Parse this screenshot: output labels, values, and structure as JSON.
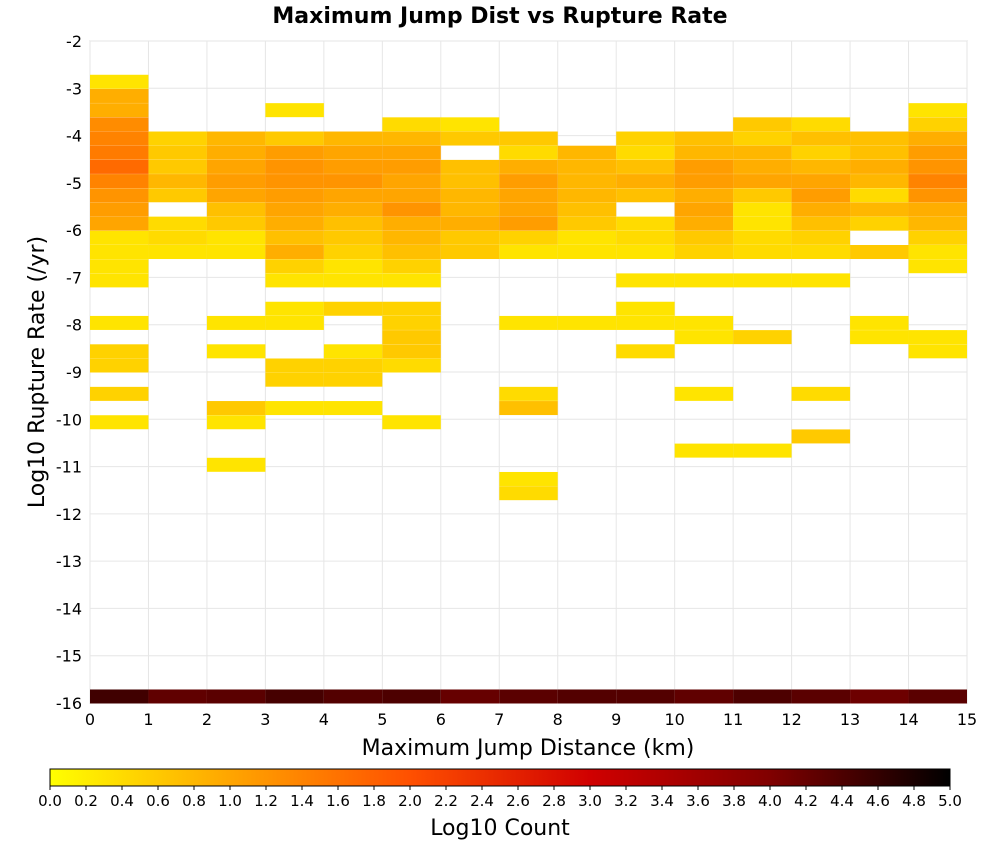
{
  "chart_data": {
    "type": "heatmap",
    "title": "Maximum Jump Dist vs Rupture Rate",
    "xlabel": "Maximum Jump Distance (km)",
    "ylabel": "Log10 Rupture Rate (/yr)",
    "colorbar_label": "Log10 Count",
    "xlim": [
      0,
      15
    ],
    "ylim": [
      -16,
      -2
    ],
    "x_ticks": [
      "0",
      "1",
      "2",
      "3",
      "4",
      "5",
      "6",
      "7",
      "8",
      "9",
      "10",
      "11",
      "12",
      "13",
      "14",
      "15"
    ],
    "y_ticks": [
      "-2",
      "-3",
      "-4",
      "-5",
      "-6",
      "-7",
      "-8",
      "-9",
      "-10",
      "-11",
      "-12",
      "-13",
      "-14",
      "-15",
      "-16"
    ],
    "colorbar_ticks": [
      "0.0",
      "0.2",
      "0.4",
      "0.6",
      "0.8",
      "1.0",
      "1.2",
      "1.4",
      "1.6",
      "1.8",
      "2.0",
      "2.2",
      "2.4",
      "2.6",
      "2.8",
      "3.0",
      "3.2",
      "3.4",
      "3.6",
      "3.8",
      "4.0",
      "4.2",
      "4.4",
      "4.6",
      "4.8",
      "5.0"
    ],
    "colorbar_range": [
      0,
      5
    ],
    "colormap": [
      "#ffff00",
      "#ffa500",
      "#ff5000",
      "#d00000",
      "#800000",
      "#000000"
    ],
    "grid": true,
    "bin_width_x": 1,
    "bin_height_y": 0.2857,
    "cells": [
      [
        0,
        -16,
        4.5
      ],
      [
        1,
        -16,
        4.25
      ],
      [
        2,
        -16,
        4.3
      ],
      [
        3,
        -16,
        4.45
      ],
      [
        4,
        -16,
        4.35
      ],
      [
        5,
        -16,
        4.4
      ],
      [
        6,
        -16,
        4.2
      ],
      [
        7,
        -16,
        4.3
      ],
      [
        8,
        -16,
        4.35
      ],
      [
        9,
        -16,
        4.35
      ],
      [
        10,
        -16,
        4.25
      ],
      [
        11,
        -16,
        4.4
      ],
      [
        12,
        -16,
        4.3
      ],
      [
        13,
        -16,
        4.15
      ],
      [
        14,
        -16,
        4.3
      ],
      [
        0,
        -3.0,
        0.3
      ],
      [
        0,
        -3.3,
        0.9
      ],
      [
        0,
        -3.6,
        0.9
      ],
      [
        0,
        -3.9,
        1.3
      ],
      [
        0,
        -4.2,
        1.4
      ],
      [
        0,
        -4.5,
        1.5
      ],
      [
        0,
        -4.8,
        1.7
      ],
      [
        0,
        -5.1,
        1.4
      ],
      [
        0,
        -5.4,
        1.2
      ],
      [
        0,
        -5.7,
        1.1
      ],
      [
        0,
        -6.0,
        1.0
      ],
      [
        0,
        -6.3,
        0.3
      ],
      [
        0,
        -6.6,
        0.3
      ],
      [
        0,
        -6.9,
        0.3
      ],
      [
        0,
        -7.2,
        0.3
      ],
      [
        0,
        -8.1,
        0.3
      ],
      [
        0,
        -8.7,
        0.5
      ],
      [
        0,
        -9.0,
        0.5
      ],
      [
        0,
        -9.6,
        0.5
      ],
      [
        0,
        -10.2,
        0.3
      ],
      [
        1,
        -4.2,
        0.5
      ],
      [
        1,
        -4.5,
        0.6
      ],
      [
        1,
        -4.8,
        0.6
      ],
      [
        1,
        -5.1,
        0.8
      ],
      [
        1,
        -5.4,
        0.6
      ],
      [
        1,
        -6.0,
        0.4
      ],
      [
        1,
        -6.3,
        0.4
      ],
      [
        1,
        -6.6,
        0.3
      ],
      [
        2,
        -4.2,
        0.8
      ],
      [
        2,
        -4.5,
        0.9
      ],
      [
        2,
        -4.8,
        1.0
      ],
      [
        2,
        -5.1,
        1.1
      ],
      [
        2,
        -5.4,
        1.0
      ],
      [
        2,
        -5.7,
        0.7
      ],
      [
        2,
        -6.0,
        0.6
      ],
      [
        2,
        -6.3,
        0.3
      ],
      [
        2,
        -6.6,
        0.3
      ],
      [
        2,
        -8.1,
        0.3
      ],
      [
        2,
        -8.7,
        0.3
      ],
      [
        2,
        -9.9,
        0.6
      ],
      [
        2,
        -10.2,
        0.3
      ],
      [
        2,
        -11.1,
        0.3
      ],
      [
        3,
        -3.6,
        0.3
      ],
      [
        3,
        -4.2,
        0.6
      ],
      [
        3,
        -4.5,
        1.1
      ],
      [
        3,
        -4.8,
        1.2
      ],
      [
        3,
        -5.1,
        1.2
      ],
      [
        3,
        -5.4,
        1.1
      ],
      [
        3,
        -5.7,
        1.0
      ],
      [
        3,
        -6.0,
        0.9
      ],
      [
        3,
        -6.3,
        0.7
      ],
      [
        3,
        -6.6,
        0.9
      ],
      [
        3,
        -6.9,
        0.5
      ],
      [
        3,
        -7.2,
        0.3
      ],
      [
        3,
        -7.8,
        0.3
      ],
      [
        3,
        -8.1,
        0.3
      ],
      [
        3,
        -9.0,
        0.5
      ],
      [
        3,
        -9.3,
        0.5
      ],
      [
        3,
        -9.9,
        0.3
      ],
      [
        4,
        -4.2,
        0.8
      ],
      [
        4,
        -4.5,
        1.0
      ],
      [
        4,
        -4.8,
        1.1
      ],
      [
        4,
        -5.1,
        1.2
      ],
      [
        4,
        -5.4,
        1.0
      ],
      [
        4,
        -5.7,
        0.9
      ],
      [
        4,
        -6.0,
        0.7
      ],
      [
        4,
        -6.3,
        0.6
      ],
      [
        4,
        -6.6,
        0.5
      ],
      [
        4,
        -6.9,
        0.3
      ],
      [
        4,
        -7.2,
        0.3
      ],
      [
        4,
        -7.8,
        0.5
      ],
      [
        4,
        -8.7,
        0.3
      ],
      [
        4,
        -9.0,
        0.5
      ],
      [
        4,
        -9.3,
        0.5
      ],
      [
        4,
        -9.9,
        0.3
      ],
      [
        5,
        -3.9,
        0.4
      ],
      [
        5,
        -4.2,
        0.8
      ],
      [
        5,
        -4.5,
        1.0
      ],
      [
        5,
        -4.8,
        1.1
      ],
      [
        5,
        -5.1,
        1.0
      ],
      [
        5,
        -5.4,
        1.0
      ],
      [
        5,
        -5.7,
        1.2
      ],
      [
        5,
        -6.0,
        0.9
      ],
      [
        5,
        -6.3,
        0.8
      ],
      [
        5,
        -6.6,
        0.7
      ],
      [
        5,
        -6.9,
        0.5
      ],
      [
        5,
        -7.2,
        0.3
      ],
      [
        5,
        -7.8,
        0.5
      ],
      [
        5,
        -8.1,
        0.5
      ],
      [
        5,
        -8.4,
        0.6
      ],
      [
        5,
        -8.7,
        0.6
      ],
      [
        5,
        -9.0,
        0.4
      ],
      [
        5,
        -10.2,
        0.3
      ],
      [
        6,
        -3.9,
        0.3
      ],
      [
        6,
        -4.2,
        0.6
      ],
      [
        6,
        -4.8,
        0.7
      ],
      [
        6,
        -5.1,
        0.7
      ],
      [
        6,
        -5.4,
        0.8
      ],
      [
        6,
        -5.7,
        0.8
      ],
      [
        6,
        -6.0,
        0.9
      ],
      [
        6,
        -6.3,
        0.6
      ],
      [
        6,
        -6.6,
        0.6
      ],
      [
        7,
        -4.2,
        0.6
      ],
      [
        7,
        -4.5,
        0.4
      ],
      [
        7,
        -4.8,
        0.9
      ],
      [
        7,
        -5.1,
        1.1
      ],
      [
        7,
        -5.4,
        1.0
      ],
      [
        7,
        -5.7,
        1.0
      ],
      [
        7,
        -6.0,
        1.1
      ],
      [
        7,
        -6.3,
        0.5
      ],
      [
        7,
        -6.6,
        0.3
      ],
      [
        7,
        -8.1,
        0.3
      ],
      [
        7,
        -9.6,
        0.4
      ],
      [
        7,
        -9.9,
        0.7
      ],
      [
        7,
        -11.4,
        0.3
      ],
      [
        7,
        -11.7,
        0.4
      ],
      [
        8,
        -4.5,
        0.8
      ],
      [
        8,
        -4.8,
        0.8
      ],
      [
        8,
        -5.1,
        0.8
      ],
      [
        8,
        -5.4,
        0.8
      ],
      [
        8,
        -5.7,
        0.7
      ],
      [
        8,
        -6.0,
        0.6
      ],
      [
        8,
        -6.3,
        0.3
      ],
      [
        8,
        -6.6,
        0.3
      ],
      [
        8,
        -8.1,
        0.3
      ],
      [
        9,
        -4.2,
        0.5
      ],
      [
        9,
        -4.5,
        0.4
      ],
      [
        9,
        -4.8,
        0.7
      ],
      [
        9,
        -5.1,
        0.9
      ],
      [
        9,
        -5.4,
        0.7
      ],
      [
        9,
        -6.0,
        0.4
      ],
      [
        9,
        -6.3,
        0.4
      ],
      [
        9,
        -6.6,
        0.3
      ],
      [
        9,
        -7.2,
        0.3
      ],
      [
        9,
        -7.8,
        0.3
      ],
      [
        9,
        -8.1,
        0.3
      ],
      [
        9,
        -8.7,
        0.4
      ],
      [
        10,
        -4.2,
        0.7
      ],
      [
        10,
        -4.5,
        0.8
      ],
      [
        10,
        -4.8,
        1.1
      ],
      [
        10,
        -5.1,
        1.1
      ],
      [
        10,
        -5.4,
        0.9
      ],
      [
        10,
        -5.7,
        1.0
      ],
      [
        10,
        -6.0,
        0.9
      ],
      [
        10,
        -6.3,
        0.6
      ],
      [
        10,
        -6.6,
        0.5
      ],
      [
        10,
        -7.2,
        0.3
      ],
      [
        10,
        -8.1,
        0.3
      ],
      [
        10,
        -8.4,
        0.3
      ],
      [
        10,
        -9.6,
        0.3
      ],
      [
        10,
        -10.8,
        0.3
      ],
      [
        11,
        -3.9,
        0.6
      ],
      [
        11,
        -4.2,
        0.5
      ],
      [
        11,
        -4.5,
        0.8
      ],
      [
        11,
        -4.8,
        0.9
      ],
      [
        11,
        -5.1,
        1.0
      ],
      [
        11,
        -5.4,
        0.6
      ],
      [
        11,
        -5.7,
        0.3
      ],
      [
        11,
        -6.0,
        0.3
      ],
      [
        11,
        -6.3,
        0.4
      ],
      [
        11,
        -6.6,
        0.4
      ],
      [
        11,
        -7.2,
        0.3
      ],
      [
        11,
        -8.4,
        0.5
      ],
      [
        11,
        -10.8,
        0.3
      ],
      [
        12,
        -3.9,
        0.4
      ],
      [
        12,
        -4.2,
        0.7
      ],
      [
        12,
        -4.5,
        0.5
      ],
      [
        12,
        -4.8,
        0.8
      ],
      [
        12,
        -5.1,
        1.0
      ],
      [
        12,
        -5.4,
        1.1
      ],
      [
        12,
        -5.7,
        0.9
      ],
      [
        12,
        -6.0,
        0.7
      ],
      [
        12,
        -6.3,
        0.5
      ],
      [
        12,
        -6.6,
        0.4
      ],
      [
        12,
        -7.2,
        0.3
      ],
      [
        12,
        -9.6,
        0.4
      ],
      [
        12,
        -10.5,
        0.6
      ],
      [
        13,
        -4.2,
        0.7
      ],
      [
        13,
        -4.5,
        0.7
      ],
      [
        13,
        -4.8,
        0.9
      ],
      [
        13,
        -5.1,
        0.8
      ],
      [
        13,
        -5.4,
        0.4
      ],
      [
        13,
        -5.7,
        0.8
      ],
      [
        13,
        -6.0,
        0.5
      ],
      [
        13,
        -6.6,
        0.6
      ],
      [
        13,
        -8.1,
        0.3
      ],
      [
        13,
        -8.4,
        0.3
      ],
      [
        14,
        -3.6,
        0.3
      ],
      [
        14,
        -3.9,
        0.5
      ],
      [
        14,
        -4.2,
        0.9
      ],
      [
        14,
        -4.5,
        1.1
      ],
      [
        14,
        -4.8,
        1.2
      ],
      [
        14,
        -5.1,
        1.4
      ],
      [
        14,
        -5.4,
        1.2
      ],
      [
        14,
        -5.7,
        0.9
      ],
      [
        14,
        -6.0,
        0.8
      ],
      [
        14,
        -6.3,
        0.5
      ],
      [
        14,
        -6.6,
        0.3
      ],
      [
        14,
        -6.9,
        0.3
      ],
      [
        14,
        -8.4,
        0.3
      ],
      [
        14,
        -8.7,
        0.3
      ]
    ]
  }
}
